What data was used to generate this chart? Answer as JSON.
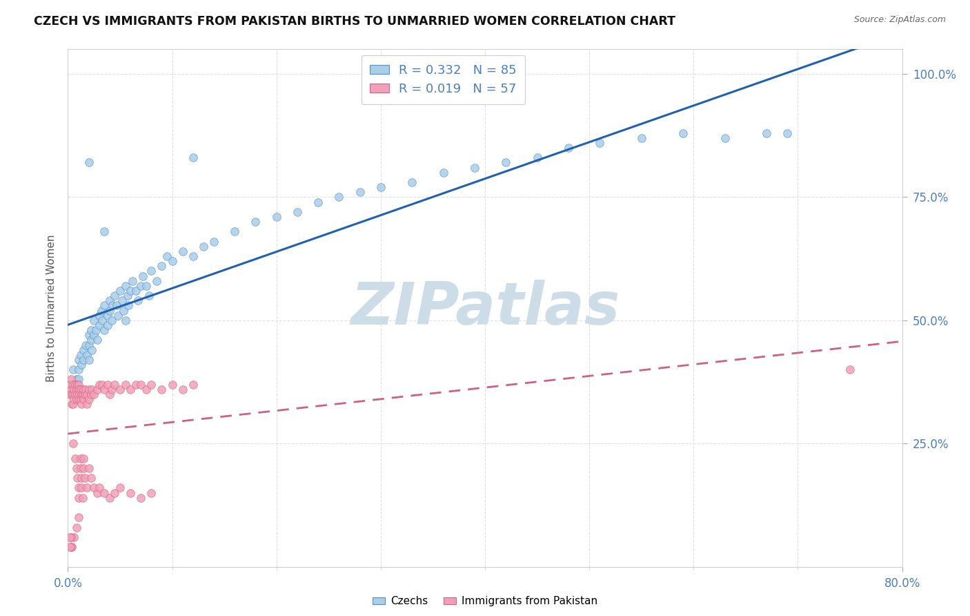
{
  "title": "CZECH VS IMMIGRANTS FROM PAKISTAN BIRTHS TO UNMARRIED WOMEN CORRELATION CHART",
  "source": "Source: ZipAtlas.com",
  "ylabel": "Births to Unmarried Women",
  "xmin": 0.0,
  "xmax": 0.8,
  "ymin": 0.0,
  "ymax": 1.05,
  "ytick_values": [
    0.25,
    0.5,
    0.75,
    1.0
  ],
  "ytick_labels": [
    "25.0%",
    "50.0%",
    "75.0%",
    "100.0%"
  ],
  "xtick_values": [
    0.0,
    0.8
  ],
  "xtick_labels": [
    "0.0%",
    "80.0%"
  ],
  "czech_R": 0.332,
  "czech_N": 85,
  "pakistan_R": 0.019,
  "pakistan_N": 57,
  "czech_fill": "#aacde8",
  "czech_edge": "#5090c8",
  "pak_fill": "#f0a0b8",
  "pak_edge": "#d86080",
  "czech_line": "#2060b0",
  "pak_line": "#d06080",
  "watermark": "ZIPatlas",
  "watermark_color": "#ccdde8",
  "bg": "#ffffff",
  "grid_color": "#e0e0e0",
  "title_color": "#111111",
  "tick_color": "#4a7fbe",
  "czech_x": [
    0.005,
    0.005,
    0.005,
    0.008,
    0.01,
    0.01,
    0.01,
    0.012,
    0.013,
    0.015,
    0.015,
    0.017,
    0.018,
    0.02,
    0.02,
    0.02,
    0.022,
    0.022,
    0.023,
    0.025,
    0.025,
    0.027,
    0.028,
    0.03,
    0.03,
    0.032,
    0.033,
    0.035,
    0.035,
    0.038,
    0.038,
    0.04,
    0.04,
    0.042,
    0.043,
    0.045,
    0.047,
    0.048,
    0.05,
    0.052,
    0.053,
    0.055,
    0.057,
    0.058,
    0.06,
    0.062,
    0.065,
    0.067,
    0.07,
    0.072,
    0.075,
    0.078,
    0.08,
    0.085,
    0.09,
    0.095,
    0.1,
    0.11,
    0.12,
    0.13,
    0.14,
    0.16,
    0.18,
    0.2,
    0.22,
    0.24,
    0.26,
    0.28,
    0.3,
    0.33,
    0.36,
    0.39,
    0.42,
    0.45,
    0.48,
    0.51,
    0.55,
    0.59,
    0.63,
    0.67,
    0.02,
    0.035,
    0.055,
    0.12,
    0.69
  ],
  "czech_y": [
    0.37,
    0.35,
    0.4,
    0.38,
    0.42,
    0.4,
    0.38,
    0.43,
    0.41,
    0.44,
    0.42,
    0.45,
    0.43,
    0.47,
    0.45,
    0.42,
    0.48,
    0.46,
    0.44,
    0.5,
    0.47,
    0.48,
    0.46,
    0.51,
    0.49,
    0.52,
    0.5,
    0.48,
    0.53,
    0.51,
    0.49,
    0.54,
    0.52,
    0.5,
    0.53,
    0.55,
    0.53,
    0.51,
    0.56,
    0.54,
    0.52,
    0.57,
    0.55,
    0.53,
    0.56,
    0.58,
    0.56,
    0.54,
    0.57,
    0.59,
    0.57,
    0.55,
    0.6,
    0.58,
    0.61,
    0.63,
    0.62,
    0.64,
    0.63,
    0.65,
    0.66,
    0.68,
    0.7,
    0.71,
    0.72,
    0.74,
    0.75,
    0.76,
    0.77,
    0.78,
    0.8,
    0.81,
    0.82,
    0.83,
    0.85,
    0.86,
    0.87,
    0.88,
    0.87,
    0.88,
    0.82,
    0.68,
    0.5,
    0.83,
    0.88
  ],
  "pak_x": [
    0.002,
    0.002,
    0.003,
    0.003,
    0.004,
    0.004,
    0.005,
    0.005,
    0.005,
    0.006,
    0.006,
    0.007,
    0.007,
    0.008,
    0.008,
    0.009,
    0.009,
    0.01,
    0.01,
    0.01,
    0.011,
    0.012,
    0.012,
    0.013,
    0.013,
    0.014,
    0.015,
    0.015,
    0.016,
    0.017,
    0.018,
    0.018,
    0.02,
    0.02,
    0.022,
    0.023,
    0.025,
    0.028,
    0.03,
    0.033,
    0.035,
    0.038,
    0.04,
    0.042,
    0.045,
    0.05,
    0.055,
    0.06,
    0.065,
    0.07,
    0.075,
    0.08,
    0.09,
    0.1,
    0.11,
    0.12,
    0.75
  ],
  "pak_y": [
    0.37,
    0.35,
    0.38,
    0.36,
    0.35,
    0.33,
    0.37,
    0.35,
    0.33,
    0.36,
    0.34,
    0.37,
    0.35,
    0.36,
    0.34,
    0.37,
    0.35,
    0.37,
    0.36,
    0.34,
    0.35,
    0.36,
    0.34,
    0.35,
    0.33,
    0.35,
    0.36,
    0.34,
    0.35,
    0.36,
    0.35,
    0.33,
    0.36,
    0.34,
    0.35,
    0.36,
    0.35,
    0.36,
    0.37,
    0.37,
    0.36,
    0.37,
    0.35,
    0.36,
    0.37,
    0.36,
    0.37,
    0.36,
    0.37,
    0.37,
    0.36,
    0.37,
    0.36,
    0.37,
    0.36,
    0.37,
    0.4
  ],
  "pak_outlier_x": [
    0.005,
    0.007,
    0.008,
    0.009,
    0.01,
    0.01,
    0.012,
    0.012,
    0.013,
    0.013,
    0.014,
    0.015,
    0.015,
    0.016,
    0.018,
    0.02,
    0.022,
    0.025,
    0.028,
    0.03,
    0.035,
    0.04,
    0.045,
    0.05,
    0.06,
    0.07,
    0.08,
    0.01,
    0.008,
    0.006,
    0.004,
    0.003,
    0.003,
    0.002,
    0.002
  ],
  "pak_outlier_y": [
    0.25,
    0.22,
    0.2,
    0.18,
    0.16,
    0.14,
    0.22,
    0.2,
    0.18,
    0.16,
    0.14,
    0.22,
    0.2,
    0.18,
    0.16,
    0.2,
    0.18,
    0.16,
    0.15,
    0.16,
    0.15,
    0.14,
    0.15,
    0.16,
    0.15,
    0.14,
    0.15,
    0.1,
    0.08,
    0.06,
    0.04,
    0.06,
    0.04,
    0.06,
    0.04
  ]
}
